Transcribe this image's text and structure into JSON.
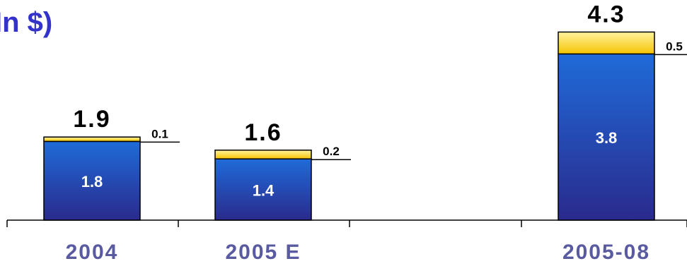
{
  "title": "In $)",
  "chart_data": {
    "type": "bar",
    "stacked": true,
    "categories": [
      "2004",
      "2005 E",
      "2005-08"
    ],
    "series": [
      {
        "values": [
          1.8,
          1.4,
          3.8
        ],
        "color": "#1f5fc8"
      },
      {
        "values": [
          0.1,
          0.2,
          0.5
        ],
        "color": "#ffe066"
      }
    ],
    "totals": [
      1.9,
      1.6,
      4.3
    ],
    "category_label_color": "#5a5aa0",
    "value_label_color": "#ffffff",
    "total_label_color": "#000000",
    "xlabel": "",
    "ylabel": "",
    "grid": false,
    "legend": "none"
  }
}
